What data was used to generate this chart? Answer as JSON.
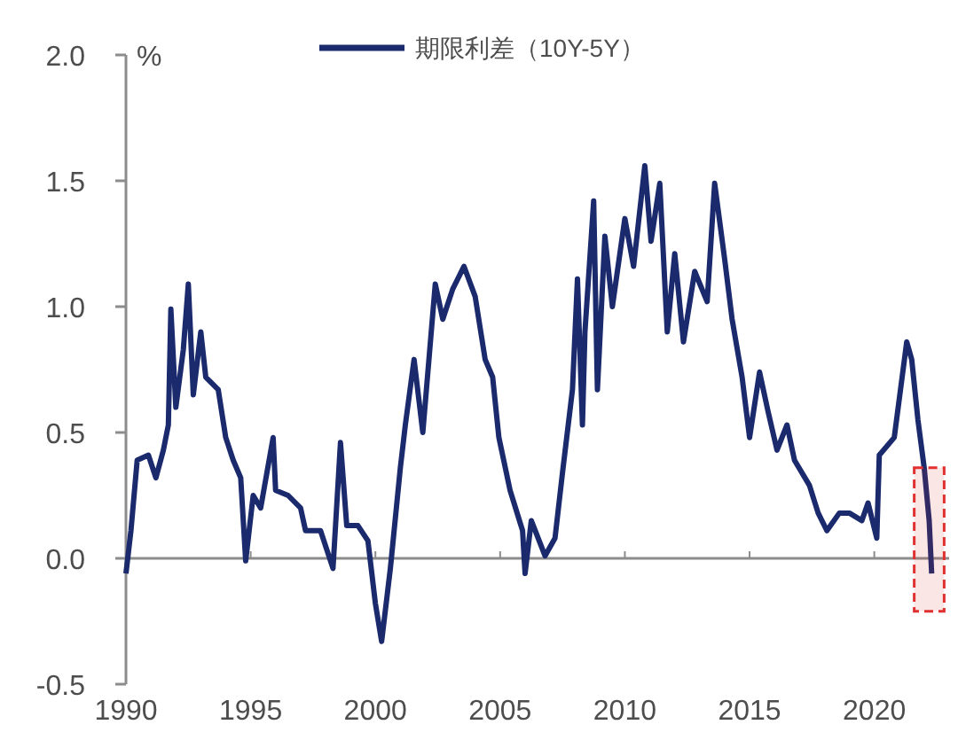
{
  "chart_data": {
    "type": "line",
    "ylabel": "%",
    "legend": "top",
    "marker": "none",
    "line_style": "solid",
    "xlim": [
      1990,
      2023
    ],
    "xticks": [
      1990,
      1995,
      2000,
      2005,
      2010,
      2015,
      2020
    ],
    "ylim": [
      -0.5,
      2.0
    ],
    "yticks": [
      {
        "value": -0.5,
        "label": "-0.5"
      },
      {
        "value": 0,
        "label": "0.0"
      },
      {
        "value": 0.5,
        "label": "0.5"
      },
      {
        "value": 1.0,
        "label": "1.0"
      },
      {
        "value": 1.5,
        "label": "1.5"
      },
      {
        "value": 2.0,
        "label": "2.0"
      }
    ],
    "bands": [
      {
        "axis": "x",
        "from": 2021.6,
        "to": 2022.8,
        "color": "#e03030"
      }
    ],
    "series": [
      {
        "name": "期限利差（10Y-5Y）",
        "color": "#1a2a6c",
        "x": [
          1990.0,
          1990.2,
          1990.45,
          1990.9,
          1991.2,
          1991.5,
          1991.7,
          1991.8,
          1992.0,
          1992.3,
          1992.5,
          1992.7,
          1993.0,
          1993.2,
          1993.7,
          1994.0,
          1994.3,
          1994.6,
          1994.8,
          1995.1,
          1995.4,
          1995.9,
          1996.0,
          1996.5,
          1997.0,
          1997.2,
          1997.8,
          1998.3,
          1998.6,
          1998.85,
          1999.3,
          1999.7,
          2000.0,
          2000.25,
          2000.6,
          2001.0,
          2001.2,
          2001.55,
          2001.9,
          2002.4,
          2002.7,
          2003.1,
          2003.55,
          2004.0,
          2004.4,
          2004.7,
          2004.95,
          2005.4,
          2005.9,
          2006.0,
          2006.25,
          2006.8,
          2007.2,
          2007.5,
          2007.9,
          2008.1,
          2008.3,
          2008.4,
          2008.75,
          2008.9,
          2009.2,
          2009.5,
          2010.0,
          2010.35,
          2010.8,
          2011.05,
          2011.4,
          2011.7,
          2012.0,
          2012.35,
          2012.8,
          2013.3,
          2013.6,
          2014.0,
          2014.3,
          2014.7,
          2015.0,
          2015.4,
          2015.75,
          2016.1,
          2016.5,
          2016.8,
          2017.4,
          2017.75,
          2018.1,
          2018.6,
          2019.0,
          2019.5,
          2019.75,
          2020.1,
          2020.2,
          2020.8,
          2021.3,
          2021.5,
          2021.75,
          2022.0,
          2022.2,
          2022.3
        ],
        "values": [
          -0.06,
          0.11,
          0.39,
          0.41,
          0.32,
          0.43,
          0.53,
          0.99,
          0.6,
          0.83,
          1.09,
          0.65,
          0.9,
          0.72,
          0.67,
          0.48,
          0.39,
          0.32,
          -0.01,
          0.25,
          0.2,
          0.48,
          0.27,
          0.25,
          0.2,
          0.11,
          0.11,
          -0.04,
          0.46,
          0.13,
          0.13,
          0.07,
          -0.18,
          -0.33,
          -0.04,
          0.36,
          0.53,
          0.79,
          0.5,
          1.09,
          0.95,
          1.07,
          1.16,
          1.04,
          0.79,
          0.72,
          0.48,
          0.27,
          0.11,
          -0.06,
          0.15,
          0.01,
          0.08,
          0.34,
          0.67,
          1.11,
          0.53,
          0.9,
          1.42,
          0.67,
          1.28,
          1.0,
          1.35,
          1.16,
          1.56,
          1.26,
          1.49,
          0.9,
          1.21,
          0.86,
          1.14,
          1.02,
          1.49,
          1.19,
          0.95,
          0.72,
          0.48,
          0.74,
          0.58,
          0.43,
          0.53,
          0.39,
          0.29,
          0.18,
          0.11,
          0.18,
          0.18,
          0.15,
          0.22,
          0.08,
          0.41,
          0.48,
          0.86,
          0.79,
          0.55,
          0.36,
          0.15,
          -0.06
        ]
      }
    ]
  }
}
